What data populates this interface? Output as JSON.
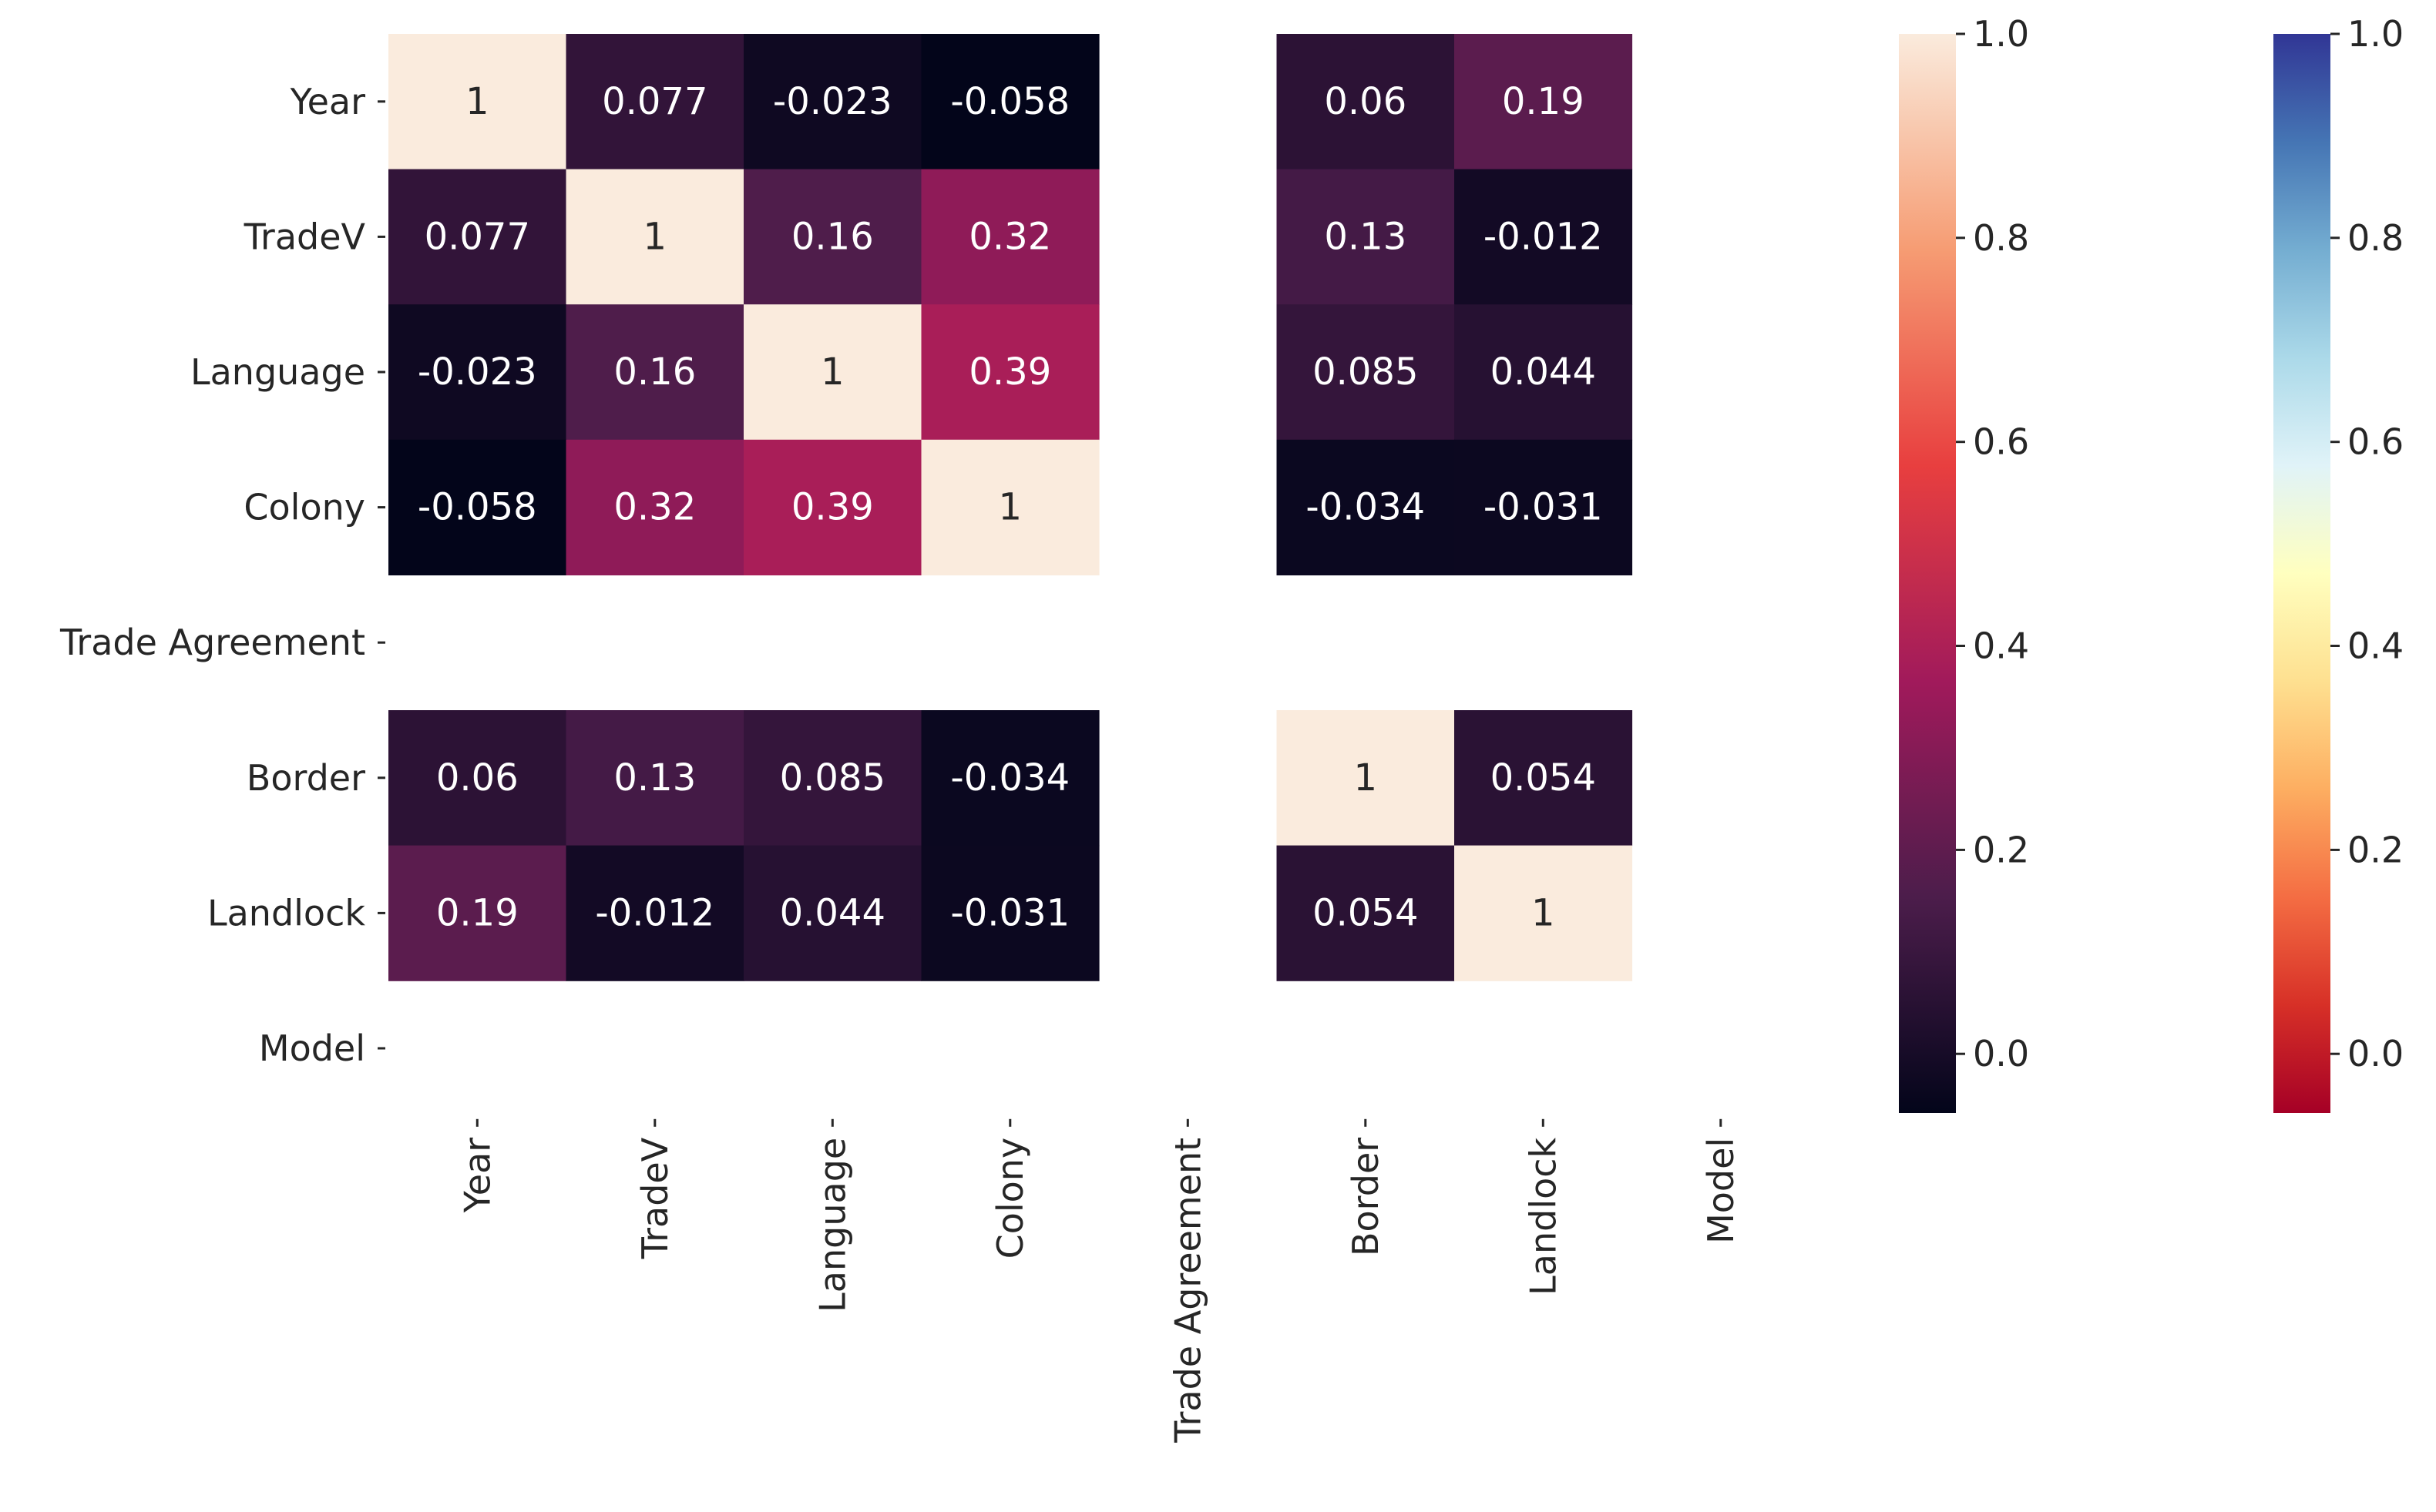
{
  "chart_data": {
    "type": "heatmap",
    "title": "",
    "xlabel": "",
    "ylabel": "",
    "rows": [
      "Year",
      "TradeV",
      "Language",
      "Colony",
      "Trade Agreement",
      "Border",
      "Landlock",
      "Model"
    ],
    "columns": [
      "Year",
      "TradeV",
      "Language",
      "Colony",
      "Trade Agreement",
      "Border",
      "Landlock",
      "Model"
    ],
    "values": [
      [
        1,
        0.077,
        -0.023,
        -0.058,
        null,
        0.06,
        0.19,
        null
      ],
      [
        0.077,
        1,
        0.16,
        0.32,
        null,
        0.13,
        -0.012,
        null
      ],
      [
        -0.023,
        0.16,
        1,
        0.39,
        null,
        0.085,
        0.044,
        null
      ],
      [
        -0.058,
        0.32,
        0.39,
        1,
        null,
        -0.034,
        -0.031,
        null
      ],
      [
        null,
        null,
        null,
        null,
        null,
        null,
        null,
        null
      ],
      [
        0.06,
        0.13,
        0.085,
        -0.034,
        null,
        1,
        0.054,
        null
      ],
      [
        0.19,
        -0.012,
        0.044,
        -0.031,
        null,
        0.054,
        1,
        null
      ],
      [
        null,
        null,
        null,
        null,
        null,
        null,
        null,
        null
      ]
    ],
    "annotations": [
      [
        "1",
        "0.077",
        "-0.023",
        "-0.058",
        "",
        "0.06",
        "0.19",
        ""
      ],
      [
        "0.077",
        "1",
        "0.16",
        "0.32",
        "",
        "0.13",
        "-0.012",
        ""
      ],
      [
        "-0.023",
        "0.16",
        "1",
        "0.39",
        "",
        "0.085",
        "0.044",
        ""
      ],
      [
        "-0.058",
        "0.32",
        "0.39",
        "1",
        "",
        "-0.034",
        "-0.031",
        ""
      ],
      [
        "",
        "",
        "",
        "",
        "",
        "",
        "",
        ""
      ],
      [
        "0.06",
        "0.13",
        "0.085",
        "-0.034",
        "",
        "1",
        "0.054",
        ""
      ],
      [
        "0.19",
        "-0.012",
        "0.044",
        "-0.031",
        "",
        "0.054",
        "1",
        ""
      ],
      [
        "",
        "",
        "",
        "",
        "",
        "",
        "",
        ""
      ]
    ],
    "value_range": [
      -0.058,
      1.0
    ],
    "grid": false,
    "colorbars": [
      {
        "colormap": "rocket",
        "ticks": [
          0.0,
          0.2,
          0.4,
          0.6,
          0.8,
          1.0
        ],
        "tick_labels": [
          "0.0",
          "0.2",
          "0.4",
          "0.6",
          "0.8",
          "1.0"
        ],
        "range": [
          -0.058,
          1.0
        ],
        "stops": [
          "#03051a",
          "#4c1d4b",
          "#a11a5b",
          "#e83f3f",
          "#f69c73",
          "#faebdd"
        ]
      },
      {
        "colormap": "RdYlBu",
        "ticks": [
          0.0,
          0.2,
          0.4,
          0.6,
          0.8,
          1.0
        ],
        "tick_labels": [
          "0.0",
          "0.2",
          "0.4",
          "0.6",
          "0.8",
          "1.0"
        ],
        "range": [
          -0.058,
          1.0
        ],
        "stops": [
          "#a50026",
          "#d73027",
          "#f46d43",
          "#fdae61",
          "#fee090",
          "#ffffbf",
          "#e0f3f8",
          "#abd9e9",
          "#74add1",
          "#4575b4",
          "#313695"
        ]
      }
    ]
  }
}
